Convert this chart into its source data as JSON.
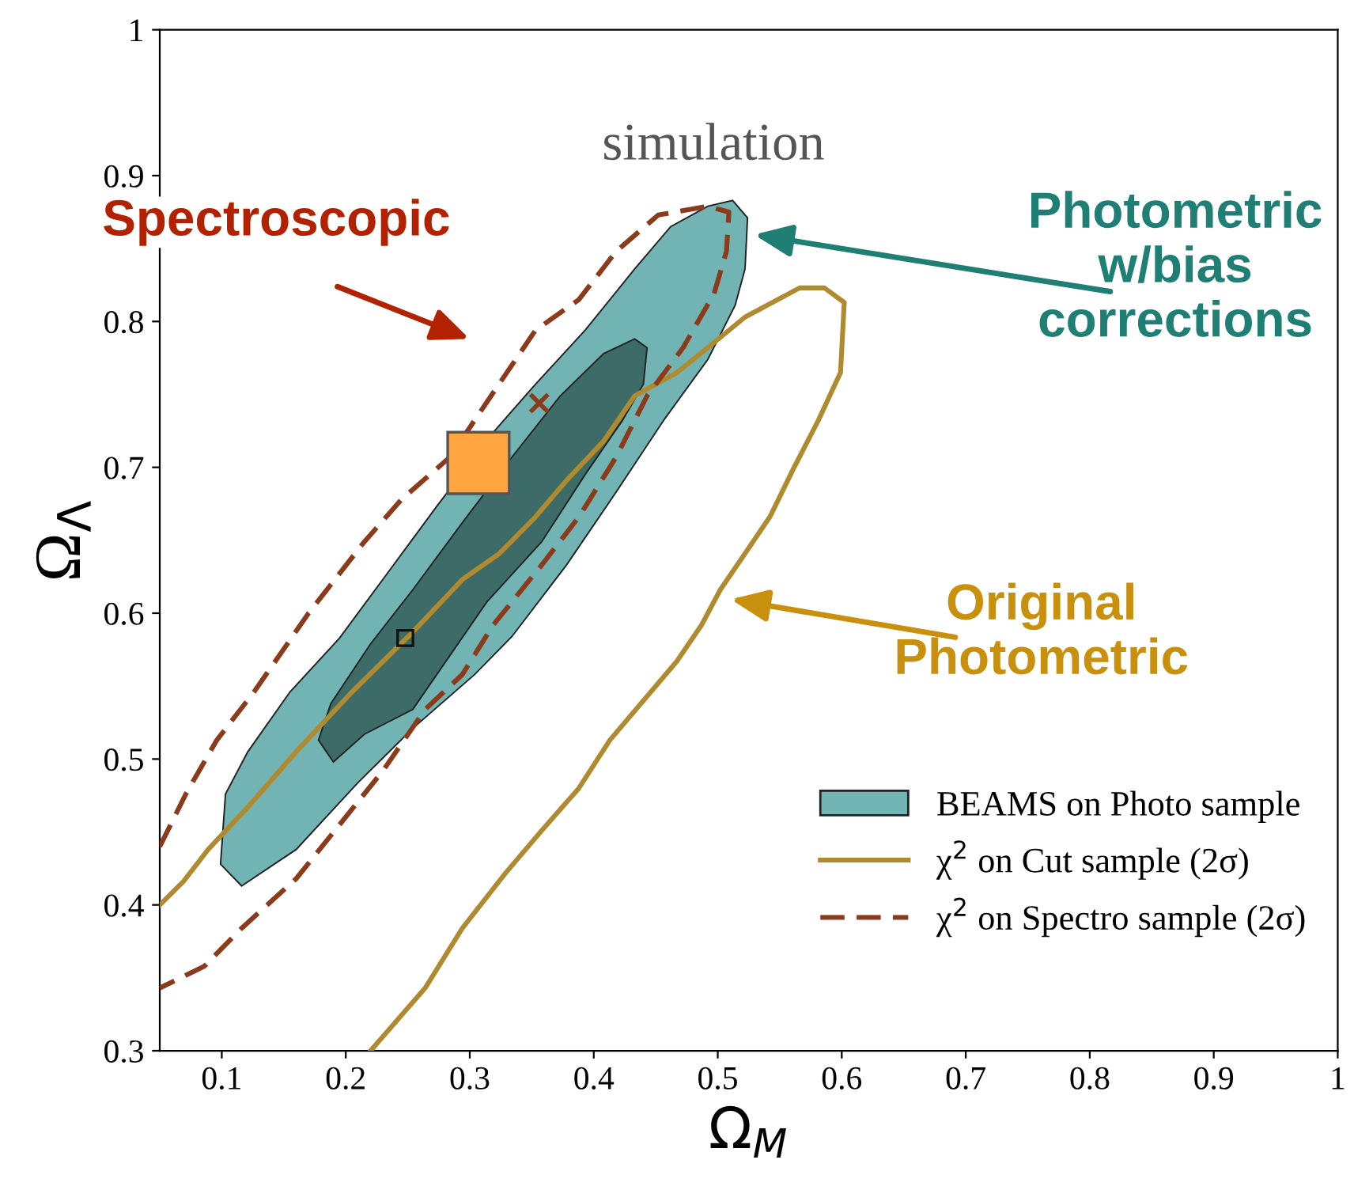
{
  "chart_data": {
    "type": "area",
    "title": "simulation",
    "xlabel": "Ω$_{M}$",
    "ylabel": "Ω$_{Λ}$",
    "xlim": [
      0.05,
      1
    ],
    "ylim": [
      0.3,
      1
    ],
    "xticks": [
      0.1,
      0.2,
      0.3,
      0.4,
      0.5,
      0.6,
      0.7,
      0.8,
      0.9,
      1
    ],
    "yticks": [
      0.3,
      0.4,
      0.5,
      0.6,
      0.7,
      0.8,
      0.9,
      1
    ],
    "grid": false,
    "legend": "bottom right",
    "annotations": [
      "Spectroscopic",
      "Photometric\nw/bias\ncorrections",
      "Original\nPhotometric"
    ],
    "series": [
      {
        "name": "BEAMS on Photo sample",
        "color": "#72b3b3",
        "x": [
          0.512,
          0.524,
          0.522,
          0.514,
          0.492,
          0.457,
          0.418,
          0.378,
          0.334,
          0.304,
          0.254,
          0.21,
          0.16,
          0.116,
          0.099,
          0.103,
          0.121,
          0.155,
          0.195,
          0.235,
          0.274,
          0.319,
          0.353,
          0.393,
          0.433,
          0.462,
          0.492
        ],
        "values": [
          0.883,
          0.871,
          0.836,
          0.811,
          0.774,
          0.733,
          0.683,
          0.633,
          0.584,
          0.558,
          0.521,
          0.484,
          0.438,
          0.413,
          0.428,
          0.476,
          0.505,
          0.546,
          0.583,
          0.629,
          0.674,
          0.724,
          0.757,
          0.794,
          0.836,
          0.865,
          0.879
        ]
      },
      {
        "type": "area",
        "color": "#3d6b68",
        "x": [
          0.433,
          0.443,
          0.44,
          0.423,
          0.393,
          0.358,
          0.314,
          0.254,
          0.215,
          0.19,
          0.178,
          0.188,
          0.22,
          0.254,
          0.294,
          0.334,
          0.373,
          0.408
        ],
        "values": [
          0.788,
          0.782,
          0.757,
          0.732,
          0.695,
          0.649,
          0.608,
          0.534,
          0.517,
          0.498,
          0.513,
          0.538,
          0.579,
          0.616,
          0.662,
          0.707,
          0.749,
          0.778
        ]
      },
      {
        "name": "χ$^{2}$ on Cut sample (2σ)",
        "type": "line",
        "line_style": "solid",
        "color": "#b08a2e",
        "x": [
          0.05,
          0.069,
          0.089,
          0.121,
          0.16,
          0.205,
          0.254,
          0.294,
          0.324,
          0.353,
          0.378,
          0.408,
          0.433,
          0.467,
          0.492,
          0.522,
          0.566,
          0.586,
          0.602,
          0.599,
          0.581,
          0.561,
          0.542,
          0.522,
          0.502,
          0.487,
          0.467,
          0.438,
          0.413,
          0.388,
          0.358,
          0.329,
          0.294,
          0.264,
          0.22
        ],
        "values": [
          0.4,
          0.416,
          0.438,
          0.467,
          0.505,
          0.546,
          0.587,
          0.623,
          0.641,
          0.666,
          0.691,
          0.718,
          0.749,
          0.765,
          0.782,
          0.803,
          0.823,
          0.823,
          0.813,
          0.765,
          0.732,
          0.699,
          0.666,
          0.641,
          0.616,
          0.592,
          0.567,
          0.538,
          0.513,
          0.48,
          0.451,
          0.422,
          0.384,
          0.343,
          0.3
        ]
      },
      {
        "name": "χ$^{2}$ on Spectro sample (2σ)",
        "type": "line",
        "line_style": "dashed",
        "color": "#8b3a1a",
        "x": [
          0.05,
          0.071,
          0.096,
          0.126,
          0.17,
          0.215,
          0.245,
          0.284,
          0.314,
          0.353,
          0.388,
          0.418,
          0.452,
          0.492,
          0.509,
          0.507,
          0.497,
          0.472,
          0.443,
          0.418,
          0.388,
          0.358,
          0.319,
          0.294,
          0.264,
          0.23,
          0.195,
          0.16,
          0.116,
          0.086,
          0.05
        ],
        "values": [
          0.44,
          0.476,
          0.513,
          0.546,
          0.6,
          0.649,
          0.678,
          0.707,
          0.745,
          0.794,
          0.815,
          0.848,
          0.873,
          0.879,
          0.875,
          0.848,
          0.819,
          0.782,
          0.749,
          0.707,
          0.666,
          0.633,
          0.592,
          0.558,
          0.534,
          0.492,
          0.455,
          0.418,
          0.384,
          0.358,
          0.343
        ]
      },
      {
        "type": "scatter",
        "marker": "square",
        "color": "#ffa640",
        "x": [
          0.307
        ],
        "values": [
          0.703
        ]
      },
      {
        "type": "scatter",
        "marker": "square",
        "color": "#111111",
        "x": [
          0.248
        ],
        "values": [
          0.583
        ]
      },
      {
        "type": "scatter",
        "marker": "cross",
        "color": "#8b3a1a",
        "x": [
          0.356
        ],
        "values": [
          0.744
        ]
      }
    ]
  }
}
